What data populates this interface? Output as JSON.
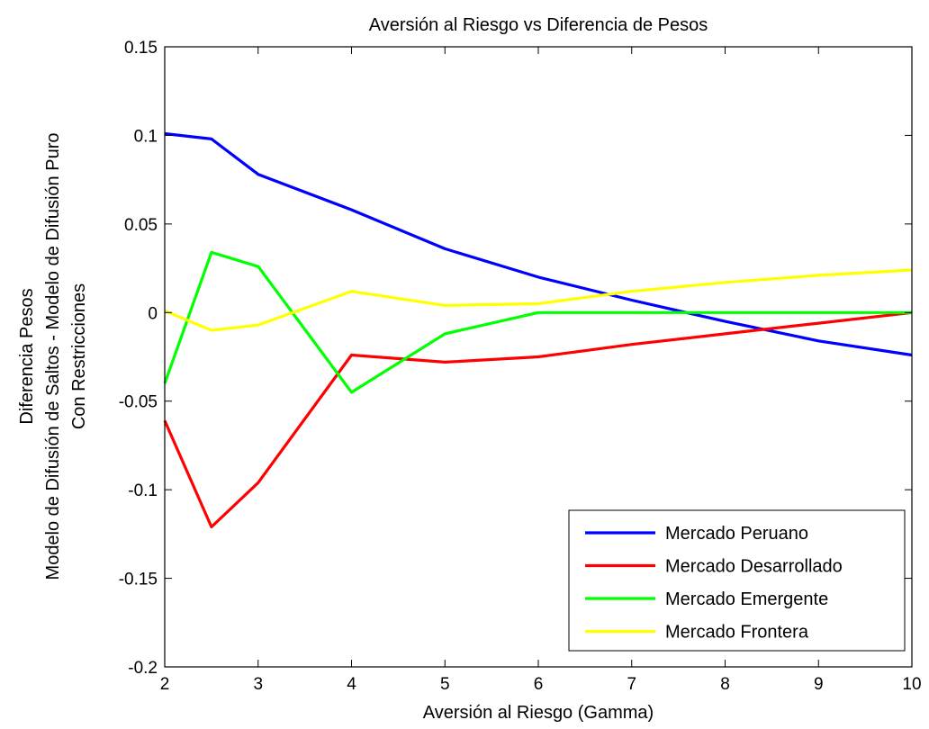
{
  "chart_data": {
    "type": "line",
    "title": "Aversión al Riesgo vs Diferencia de Pesos",
    "xlabel": "Aversión al Riesgo (Gamma)",
    "ylabel_lines": [
      "Diferencia Pesos",
      "Modelo de Difusión de Saltos - Modelo de Difusión Puro",
      "Con Restricciones"
    ],
    "xlim": [
      2,
      10
    ],
    "ylim": [
      -0.2,
      0.15
    ],
    "xticks": [
      2,
      3,
      4,
      5,
      6,
      7,
      8,
      9,
      10
    ],
    "yticks": [
      -0.2,
      -0.15,
      -0.1,
      -0.05,
      0,
      0.05,
      0.1,
      0.15
    ],
    "ytick_labels": [
      "-0.2",
      "-0.15",
      "-0.1",
      "-0.05",
      "0",
      "0.05",
      "0.1",
      "0.15"
    ],
    "grid": false,
    "legend_position": "bottom-right",
    "x": [
      2,
      2.5,
      3,
      4,
      5,
      6,
      7,
      8,
      9,
      10
    ],
    "series": [
      {
        "name": "Mercado Peruano",
        "color": "#0000ff",
        "values": [
          0.101,
          0.098,
          0.078,
          0.058,
          0.036,
          0.02,
          0.007,
          -0.005,
          -0.016,
          -0.024
        ]
      },
      {
        "name": "Mercado Desarrollado",
        "color": "#ff0000",
        "values": [
          -0.061,
          -0.121,
          -0.096,
          -0.024,
          -0.028,
          -0.025,
          -0.018,
          -0.012,
          -0.006,
          0.0
        ]
      },
      {
        "name": "Mercado Emergente",
        "color": "#00ff00",
        "values": [
          -0.04,
          0.034,
          0.026,
          -0.045,
          -0.012,
          0.0,
          0.0,
          0.0,
          0.0,
          0.0
        ]
      },
      {
        "name": "Mercado Frontera",
        "color": "#ffff00",
        "values": [
          0.001,
          -0.01,
          -0.007,
          0.012,
          0.004,
          0.005,
          0.012,
          0.017,
          0.021,
          0.024
        ]
      }
    ]
  }
}
